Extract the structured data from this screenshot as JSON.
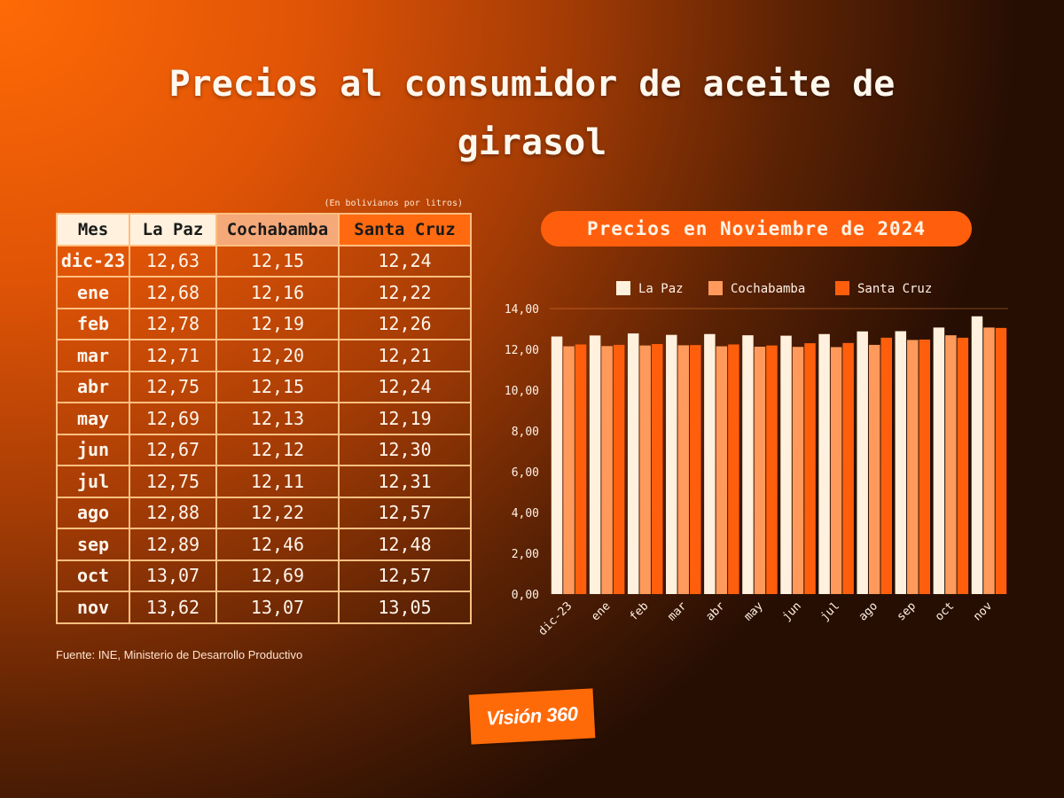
{
  "title": "Precios al consumidor de aceite de girasol",
  "table": {
    "unit_note": "(En bolivianos por litros)",
    "headers": [
      "Mes",
      "La Paz",
      "Cochabamba",
      "Santa Cruz"
    ],
    "rows": [
      [
        "dic-23",
        "12,63",
        "12,15",
        "12,24"
      ],
      [
        "ene",
        "12,68",
        "12,16",
        "12,22"
      ],
      [
        "feb",
        "12,78",
        "12,19",
        "12,26"
      ],
      [
        "mar",
        "12,71",
        "12,20",
        "12,21"
      ],
      [
        "abr",
        "12,75",
        "12,15",
        "12,24"
      ],
      [
        "may",
        "12,69",
        "12,13",
        "12,19"
      ],
      [
        "jun",
        "12,67",
        "12,12",
        "12,30"
      ],
      [
        "jul",
        "12,75",
        "12,11",
        "12,31"
      ],
      [
        "ago",
        "12,88",
        "12,22",
        "12,57"
      ],
      [
        "sep",
        "12,89",
        "12,46",
        "12,48"
      ],
      [
        "oct",
        "13,07",
        "12,69",
        "12,57"
      ],
      [
        "nov",
        "13,62",
        "13,07",
        "13,05"
      ]
    ]
  },
  "source": "Fuente: INE, Ministerio de Desarrollo Productivo",
  "chart_title": "Precios en Noviembre de 2024",
  "chart_data": {
    "type": "bar",
    "title": "Precios en Noviembre de 2024",
    "categories": [
      "dic-23",
      "ene",
      "feb",
      "mar",
      "abr",
      "may",
      "jun",
      "jul",
      "ago",
      "sep",
      "oct",
      "nov"
    ],
    "series": [
      {
        "name": "La Paz",
        "color": "#fff1dd",
        "values": [
          12.63,
          12.68,
          12.78,
          12.71,
          12.75,
          12.69,
          12.67,
          12.75,
          12.88,
          12.89,
          13.07,
          13.62
        ]
      },
      {
        "name": "Cochabamba",
        "color": "#ff9a5c",
        "values": [
          12.15,
          12.16,
          12.19,
          12.2,
          12.15,
          12.13,
          12.12,
          12.11,
          12.22,
          12.46,
          12.69,
          13.07
        ]
      },
      {
        "name": "Santa Cruz",
        "color": "#ff5f0d",
        "values": [
          12.24,
          12.22,
          12.26,
          12.21,
          12.24,
          12.19,
          12.3,
          12.31,
          12.57,
          12.48,
          12.57,
          13.05
        ]
      }
    ],
    "y_ticks": [
      "0,00",
      "2,00",
      "4,00",
      "6,00",
      "8,00",
      "10,00",
      "12,00",
      "14,00"
    ],
    "ylim": [
      0,
      14
    ],
    "legend_position": "top",
    "grid": false
  },
  "logo": {
    "text": "Visión 360"
  }
}
